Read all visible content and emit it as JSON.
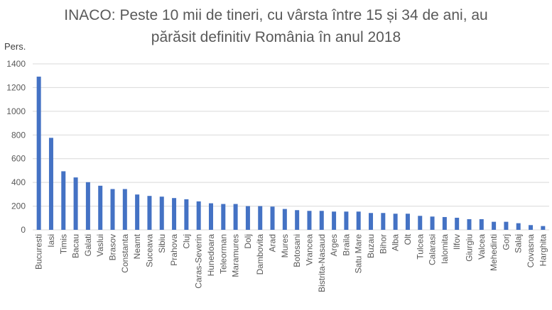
{
  "chart_data": {
    "type": "bar",
    "title_lines": [
      "INACO: Peste 10 mii de tineri, cu vârsta între 15 și 34 de ani, au",
      "părăsit definitiv România în anul 2018"
    ],
    "ylabel": "Pers.",
    "xlabel": "",
    "ylim": [
      0,
      1400
    ],
    "yticks": [
      0,
      200,
      400,
      600,
      800,
      1000,
      1200,
      1400
    ],
    "grid": true,
    "bar_color": "#4472C4",
    "categories": [
      "Bucuresti",
      "Iasi",
      "Timis",
      "Bacau",
      "Galati",
      "Vaslui",
      "Brasov",
      "Constanta",
      "Neamt",
      "Suceava",
      "Sibiu",
      "Prahova",
      "Cluj",
      "Caras-Severin",
      "Hunedoara",
      "Teleorman",
      "Maramures",
      "Dolj",
      "Dambovita",
      "Arad",
      "Mures",
      "Botosani",
      "Vrancea",
      "Bistrita-Nasaud",
      "Arges",
      "Braila",
      "Satu Mare",
      "Buzau",
      "Bihor",
      "Alba",
      "Olt",
      "Tulcea",
      "Calarasi",
      "Ialomita",
      "Ilfov",
      "Giurgiu",
      "Valcea",
      "Mehedinti",
      "Gorj",
      "Salaj",
      "Covasna",
      "Harghita"
    ],
    "values": [
      1292,
      776,
      494,
      442,
      402,
      372,
      344,
      344,
      298,
      286,
      280,
      268,
      258,
      240,
      224,
      218,
      218,
      200,
      200,
      196,
      176,
      166,
      160,
      160,
      154,
      154,
      154,
      142,
      142,
      136,
      136,
      118,
      112,
      108,
      102,
      90,
      90,
      68,
      68,
      56,
      40,
      32
    ]
  }
}
